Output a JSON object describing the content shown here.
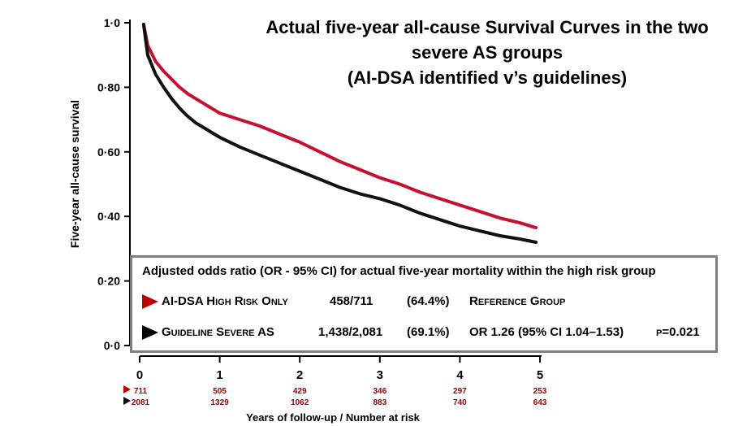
{
  "title_lines": [
    "Actual five-year all-cause Survival Curves in the two",
    "severe AS groups",
    "(AI-DSA identified v’s guidelines)"
  ],
  "colors": {
    "red_series": "#c8102e",
    "black_series": "#111111",
    "risk_text": "#a00000",
    "box_border": "#7f7f7f"
  },
  "chart_data": {
    "type": "line",
    "title": "Actual five-year all-cause Survival Curves in the two severe AS groups (AI-DSA identified v’s guidelines)",
    "xlabel": "Years of follow-up / Number at risk",
    "ylabel": "Five-year all-cause survival",
    "xlim": [
      0,
      5
    ],
    "ylim": [
      0,
      1.0
    ],
    "x_ticks": [
      "0",
      "1",
      "2",
      "3",
      "4",
      "5"
    ],
    "y_ticks": [
      {
        "value": 0.0,
        "label": "0·0"
      },
      {
        "value": 0.2,
        "label": "0·20"
      },
      {
        "value": 0.4,
        "label": "0·40"
      },
      {
        "value": 0.6,
        "label": "0·60"
      },
      {
        "value": 0.8,
        "label": "0·80"
      },
      {
        "value": 1.0,
        "label": "1·0"
      }
    ],
    "grid": false,
    "legend": "none",
    "series": [
      {
        "color": "#c8102e",
        "x": [
          0.05,
          0.1,
          0.2,
          0.3,
          0.4,
          0.5,
          0.6,
          0.7,
          0.8,
          0.9,
          1.0,
          1.25,
          1.5,
          1.75,
          2.0,
          2.25,
          2.5,
          2.75,
          3.0,
          3.25,
          3.5,
          3.75,
          4.0,
          4.25,
          4.5,
          4.75,
          4.95
        ],
        "y": [
          0.995,
          0.93,
          0.88,
          0.85,
          0.825,
          0.8,
          0.78,
          0.765,
          0.75,
          0.735,
          0.72,
          0.7,
          0.68,
          0.655,
          0.63,
          0.6,
          0.57,
          0.545,
          0.52,
          0.5,
          0.475,
          0.455,
          0.435,
          0.415,
          0.395,
          0.38,
          0.365
        ]
      },
      {
        "color": "#111111",
        "x": [
          0.05,
          0.1,
          0.2,
          0.3,
          0.4,
          0.5,
          0.6,
          0.7,
          0.8,
          0.9,
          1.0,
          1.25,
          1.5,
          1.75,
          2.0,
          2.25,
          2.5,
          2.75,
          3.0,
          3.25,
          3.5,
          3.75,
          4.0,
          4.25,
          4.5,
          4.75,
          4.95
        ],
        "y": [
          0.995,
          0.9,
          0.84,
          0.8,
          0.765,
          0.735,
          0.71,
          0.69,
          0.675,
          0.66,
          0.645,
          0.615,
          0.59,
          0.565,
          0.54,
          0.515,
          0.49,
          0.47,
          0.455,
          0.435,
          0.41,
          0.39,
          0.37,
          0.355,
          0.34,
          0.33,
          0.32
        ]
      }
    ],
    "number_at_risk": {
      "red": [
        "711",
        "505",
        "429",
        "346",
        "297",
        "253"
      ],
      "black": [
        "2081",
        "1329",
        "1062",
        "883",
        "740",
        "643"
      ]
    }
  },
  "results_box": {
    "heading": "Adjusted odds ratio (OR - 95% CI) for actual five-year mortality within the high risk group",
    "rows": [
      {
        "marker_color": "#c00000",
        "group": "AI-DSA High Risk Only",
        "count": "458/711",
        "pct": "(64.4%)",
        "result": "Reference Group",
        "p": ""
      },
      {
        "marker_color": "#000000",
        "group": "Guideline Severe AS",
        "count": "1,438/2,081",
        "pct": "(69.1%)",
        "result": "OR 1.26 (95% CI 1.04–1.53)",
        "p": "p=0.021"
      }
    ]
  }
}
